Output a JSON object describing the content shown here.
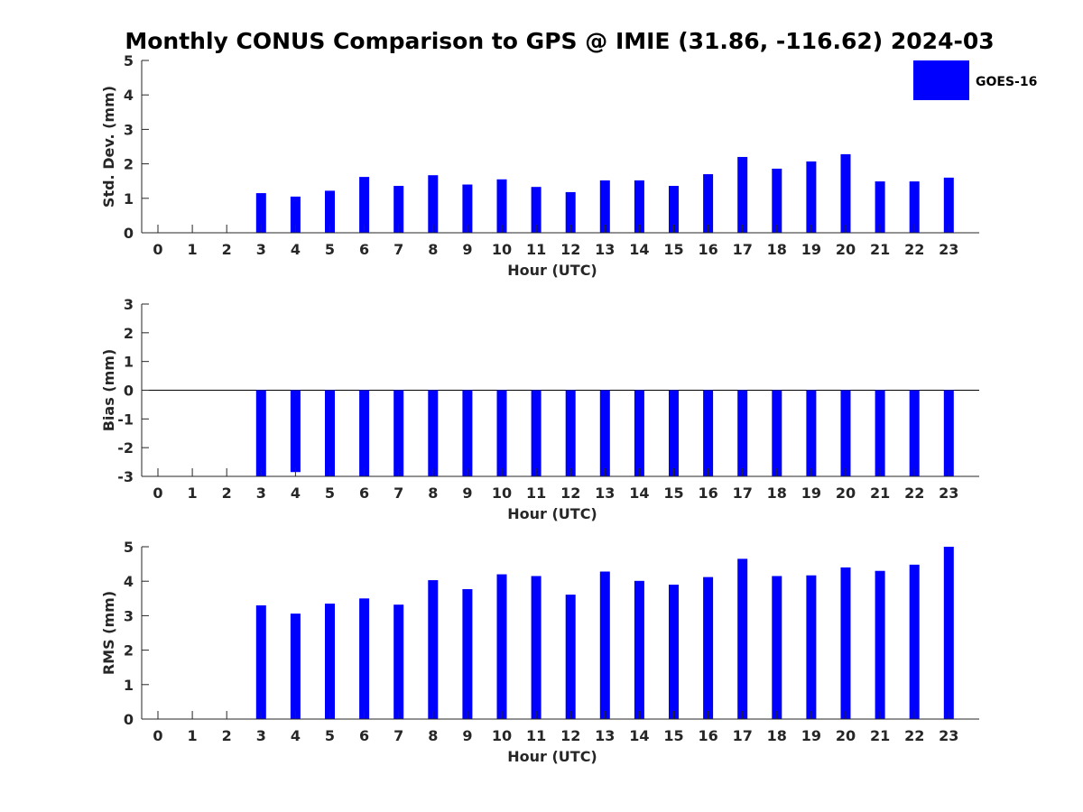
{
  "title": "Monthly CONUS Comparison to GPS @ IMIE (31.86, -116.62) 2024-03",
  "legend": {
    "label": "GOES-16",
    "color": "#0000FF",
    "placement": "top-right"
  },
  "colors": {
    "bar": "#0000FF",
    "axis": "#262626"
  },
  "chart_data": [
    {
      "type": "bar",
      "xlabel": "Hour (UTC)",
      "ylabel": "Std. Dev. (mm)",
      "categories": [
        "0",
        "1",
        "2",
        "3",
        "4",
        "5",
        "6",
        "7",
        "8",
        "9",
        "10",
        "11",
        "12",
        "13",
        "14",
        "15",
        "16",
        "17",
        "18",
        "19",
        "20",
        "21",
        "22",
        "23"
      ],
      "series": [
        {
          "name": "GOES-16",
          "values": [
            null,
            null,
            null,
            1.15,
            1.05,
            1.22,
            1.62,
            1.36,
            1.67,
            1.4,
            1.55,
            1.33,
            1.18,
            1.52,
            1.52,
            1.36,
            1.7,
            2.2,
            1.86,
            2.07,
            2.28,
            1.49,
            1.49,
            1.6
          ]
        }
      ],
      "ylim": [
        0,
        5
      ],
      "yticks": [
        0,
        1,
        2,
        3,
        4,
        5
      ],
      "grid": false
    },
    {
      "type": "bar",
      "xlabel": "Hour (UTC)",
      "ylabel": "Bias (mm)",
      "categories": [
        "0",
        "1",
        "2",
        "3",
        "4",
        "5",
        "6",
        "7",
        "8",
        "9",
        "10",
        "11",
        "12",
        "13",
        "14",
        "15",
        "16",
        "17",
        "18",
        "19",
        "20",
        "21",
        "22",
        "23"
      ],
      "series": [
        {
          "name": "GOES-16",
          "values": [
            null,
            null,
            null,
            -3.0,
            -2.85,
            -3.0,
            -3.0,
            -3.0,
            -3.0,
            -3.0,
            -3.0,
            -3.0,
            -3.0,
            -3.0,
            -3.0,
            -3.0,
            -3.0,
            -3.0,
            -3.0,
            -3.0,
            -3.0,
            -3.0,
            -3.0,
            -3.0
          ]
        }
      ],
      "ylim": [
        -3,
        3
      ],
      "yticks": [
        -3,
        -2,
        -1,
        0,
        1,
        2,
        3
      ],
      "grid": false
    },
    {
      "type": "bar",
      "xlabel": "Hour (UTC)",
      "ylabel": "RMS (mm)",
      "categories": [
        "0",
        "1",
        "2",
        "3",
        "4",
        "5",
        "6",
        "7",
        "8",
        "9",
        "10",
        "11",
        "12",
        "13",
        "14",
        "15",
        "16",
        "17",
        "18",
        "19",
        "20",
        "21",
        "22",
        "23"
      ],
      "series": [
        {
          "name": "GOES-16",
          "values": [
            null,
            null,
            null,
            3.3,
            3.06,
            3.35,
            3.5,
            3.32,
            4.03,
            3.77,
            4.2,
            4.15,
            3.61,
            4.28,
            4.01,
            3.9,
            4.12,
            4.65,
            4.15,
            4.17,
            4.4,
            4.3,
            4.48,
            5.0
          ]
        }
      ],
      "ylim": [
        0,
        5
      ],
      "yticks": [
        0,
        1,
        2,
        3,
        4,
        5
      ],
      "grid": false
    }
  ]
}
